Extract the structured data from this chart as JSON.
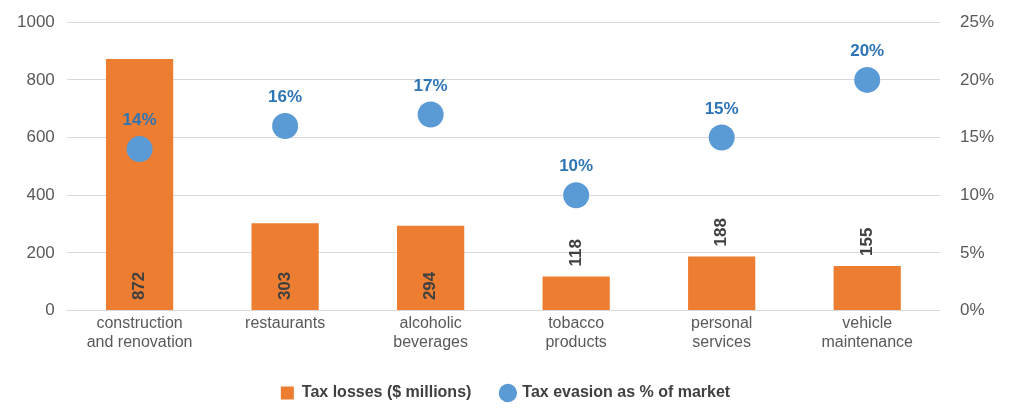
{
  "chart_data": {
    "type": "bar",
    "categories": [
      "construction and renovation",
      "restaurants",
      "alcoholic beverages",
      "tobacco products",
      "personal services",
      "vehicle maintenance"
    ],
    "series": [
      {
        "name": "Tax losses ($ millions)",
        "color": "#ed7d31",
        "values": [
          872,
          303,
          294,
          118,
          188,
          155
        ],
        "value_labels": [
          "872",
          "303",
          "294",
          "118",
          "188",
          "155"
        ]
      },
      {
        "name": "Tax evasion as % of market",
        "type": "scatter",
        "axis": "y2",
        "color": "#5b9bd5",
        "x": [
          "construction and renovation",
          "restaurants",
          "alcoholic beverages",
          "tobacco products",
          "personal services",
          "vehicle maintenance"
        ],
        "values": [
          14,
          16,
          17,
          10,
          15,
          20
        ],
        "value_labels": [
          "14%",
          "16%",
          "17%",
          "10%",
          "15%",
          "20%"
        ]
      }
    ],
    "ylim": [
      0,
      1000
    ],
    "yticks": [
      0,
      200,
      400,
      600,
      800,
      1000
    ],
    "y2lim": [
      0,
      25
    ],
    "y2ticks": [
      {
        "value": 0,
        "label": "0%"
      },
      {
        "value": 5,
        "label": "5%"
      },
      {
        "value": 10,
        "label": "10%"
      },
      {
        "value": 15,
        "label": "15%"
      },
      {
        "value": 20,
        "label": "20%"
      },
      {
        "value": 25,
        "label": "25%"
      }
    ],
    "grid": "y",
    "legend": "bottom",
    "marker": "circle"
  }
}
